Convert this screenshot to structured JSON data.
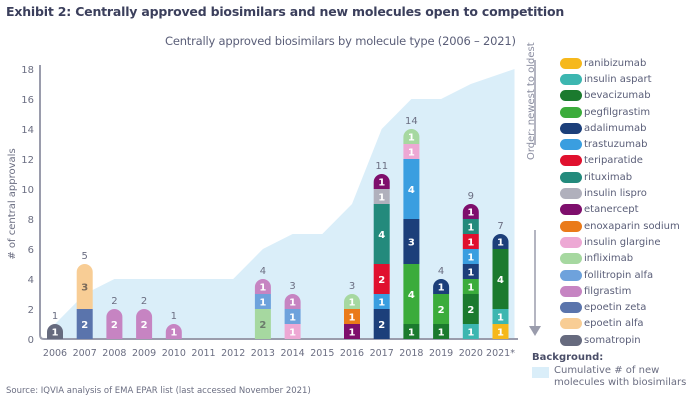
{
  "title": "Exhibit 2: Centrally approved biosimilars and new molecules open to competition",
  "source": "Source: IQVIA analysis of EMA EPAR list (last accessed November 2021)",
  "legend": {
    "order_label": "Order: newest to oldest",
    "background_title": "Background:",
    "background_text": "Cumulative # of new molecules with biosimilars",
    "background_color": "#daeef9"
  },
  "chart_data": {
    "type": "bar",
    "stacked": true,
    "title": "Centrally approved biosimilars by molecule type (2006 – 2021)",
    "xlabel": "",
    "ylabel": "# of central approvals",
    "ylim": [
      0,
      18
    ],
    "yticks": [
      0,
      2,
      4,
      6,
      8,
      10,
      12,
      14,
      16,
      18
    ],
    "grid": false,
    "legend_position": "right",
    "categories": [
      "2006",
      "2007",
      "2008",
      "2009",
      "2010",
      "2011",
      "2012",
      "2013",
      "2014",
      "2015",
      "2016",
      "2017",
      "2018",
      "2019",
      "2020",
      "2021*"
    ],
    "totals": [
      1,
      5,
      2,
      2,
      1,
      0,
      0,
      4,
      3,
      0,
      3,
      11,
      14,
      4,
      9,
      7
    ],
    "molecules": [
      {
        "name": "ranibizumab",
        "color": "#f6b81c"
      },
      {
        "name": "insulin aspart",
        "color": "#3cb6b0"
      },
      {
        "name": "bevacizumab",
        "color": "#1b7a2e"
      },
      {
        "name": "pegfilgrastim",
        "color": "#3bac3b"
      },
      {
        "name": "adalimumab",
        "color": "#1c3f7a"
      },
      {
        "name": "trastuzumab",
        "color": "#3a9ee0"
      },
      {
        "name": "teriparatide",
        "color": "#e0102e"
      },
      {
        "name": "rituximab",
        "color": "#238a7c"
      },
      {
        "name": "insulin lispro",
        "color": "#b0b0bc"
      },
      {
        "name": "etanercept",
        "color": "#7e0e6c"
      },
      {
        "name": "enoxaparin sodium",
        "color": "#ea7a1a"
      },
      {
        "name": "insulin glargine",
        "color": "#eda8d4"
      },
      {
        "name": "infliximab",
        "color": "#a6d8a0"
      },
      {
        "name": "follitropin alfa",
        "color": "#6ea2dc"
      },
      {
        "name": "filgrastim",
        "color": "#c684c2"
      },
      {
        "name": "epoetin zeta",
        "color": "#5a74ac"
      },
      {
        "name": "epoetin alfa",
        "color": "#f8cd95"
      },
      {
        "name": "somatropin",
        "color": "#666a7e"
      }
    ],
    "stacks": [
      [
        {
          "molecule": "somatropin",
          "value": 1
        }
      ],
      [
        {
          "molecule": "epoetin zeta",
          "value": 2
        },
        {
          "molecule": "epoetin alfa",
          "value": 3
        }
      ],
      [
        {
          "molecule": "filgrastim",
          "value": 2
        }
      ],
      [
        {
          "molecule": "filgrastim",
          "value": 2
        }
      ],
      [
        {
          "molecule": "filgrastim",
          "value": 1
        }
      ],
      [],
      [],
      [
        {
          "molecule": "infliximab",
          "value": 2
        },
        {
          "molecule": "follitropin alfa",
          "value": 1
        },
        {
          "molecule": "filgrastim",
          "value": 1
        }
      ],
      [
        {
          "molecule": "insulin glargine",
          "value": 1
        },
        {
          "molecule": "follitropin alfa",
          "value": 1
        },
        {
          "molecule": "filgrastim",
          "value": 1
        }
      ],
      [],
      [
        {
          "molecule": "etanercept",
          "value": 1
        },
        {
          "molecule": "enoxaparin sodium",
          "value": 1
        },
        {
          "molecule": "infliximab",
          "value": 1
        }
      ],
      [
        {
          "molecule": "adalimumab",
          "value": 2
        },
        {
          "molecule": "trastuzumab",
          "value": 1
        },
        {
          "molecule": "teriparatide",
          "value": 2
        },
        {
          "molecule": "rituximab",
          "value": 4
        },
        {
          "molecule": "insulin lispro",
          "value": 1
        },
        {
          "molecule": "etanercept",
          "value": 1
        }
      ],
      [
        {
          "molecule": "bevacizumab",
          "value": 1
        },
        {
          "molecule": "pegfilgrastim",
          "value": 4
        },
        {
          "molecule": "adalimumab",
          "value": 3
        },
        {
          "molecule": "trastuzumab",
          "value": 4
        },
        {
          "molecule": "insulin glargine",
          "value": 1
        },
        {
          "molecule": "infliximab",
          "value": 1
        }
      ],
      [
        {
          "molecule": "bevacizumab",
          "value": 1
        },
        {
          "molecule": "pegfilgrastim",
          "value": 2
        },
        {
          "molecule": "adalimumab",
          "value": 1
        }
      ],
      [
        {
          "molecule": "insulin aspart",
          "value": 1
        },
        {
          "molecule": "bevacizumab",
          "value": 2
        },
        {
          "molecule": "pegfilgrastim",
          "value": 1
        },
        {
          "molecule": "adalimumab",
          "value": 1
        },
        {
          "molecule": "trastuzumab",
          "value": 1
        },
        {
          "molecule": "teriparatide",
          "value": 1
        },
        {
          "molecule": "rituximab",
          "value": 1
        },
        {
          "molecule": "etanercept",
          "value": 1
        }
      ],
      [
        {
          "molecule": "ranibizumab",
          "value": 1
        },
        {
          "molecule": "insulin aspart",
          "value": 1
        },
        {
          "molecule": "bevacizumab",
          "value": 4
        },
        {
          "molecule": "adalimumab",
          "value": 1
        }
      ]
    ],
    "background_area": {
      "name": "Cumulative # of new molecules with biosimilars",
      "values": [
        1,
        3,
        4,
        4,
        4,
        4,
        4,
        6,
        7,
        7,
        9,
        14,
        16,
        16,
        17,
        18
      ]
    }
  }
}
